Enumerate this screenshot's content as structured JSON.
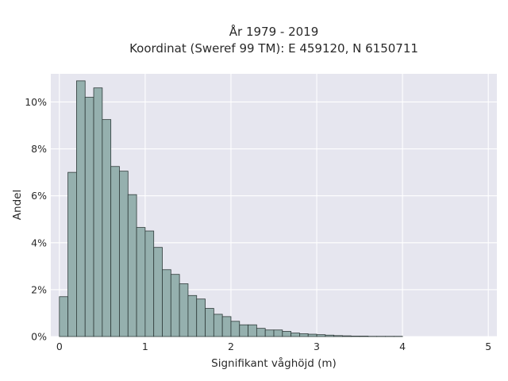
{
  "chart_data": {
    "type": "bar",
    "title_lines": [
      "År 1979 - 2019",
      "Koordinat (Sweref 99 TM): E 459120, N 6150711"
    ],
    "xlabel": "Signifikant våghöjd (m)",
    "ylabel": "Andel",
    "xlim": [
      -0.1,
      5.1
    ],
    "ylim": [
      0,
      11.2
    ],
    "x_ticks": [
      0,
      1,
      2,
      3,
      4,
      5
    ],
    "x_tick_labels": [
      "0",
      "1",
      "2",
      "3",
      "4",
      "5"
    ],
    "y_ticks": [
      0,
      2,
      4,
      6,
      8,
      10
    ],
    "y_tick_labels": [
      "0%",
      "2%",
      "4%",
      "6%",
      "8%",
      "10%"
    ],
    "y_unit": "%",
    "grid": true,
    "bin_width": 0.1,
    "bin_starts": [
      0,
      0.1,
      0.2,
      0.3,
      0.4,
      0.5,
      0.6,
      0.7,
      0.8,
      0.9,
      1.0,
      1.1,
      1.2,
      1.3,
      1.4,
      1.5,
      1.6,
      1.7,
      1.8,
      1.9,
      2.0,
      2.1,
      2.2,
      2.3,
      2.4,
      2.5,
      2.6,
      2.7,
      2.8,
      2.9,
      3.0,
      3.1,
      3.2,
      3.3,
      3.4,
      3.5,
      3.6,
      3.7,
      3.8,
      3.9
    ],
    "values": [
      1.7,
      7.0,
      10.9,
      10.2,
      10.6,
      9.25,
      7.25,
      7.05,
      6.05,
      4.65,
      4.5,
      3.8,
      2.85,
      2.65,
      2.25,
      1.75,
      1.6,
      1.2,
      0.95,
      0.85,
      0.65,
      0.5,
      0.5,
      0.35,
      0.28,
      0.28,
      0.22,
      0.15,
      0.12,
      0.1,
      0.08,
      0.06,
      0.04,
      0.03,
      0.02,
      0.02,
      0.01,
      0.01,
      0.01,
      0.01
    ],
    "colors": {
      "bar_fill": "#95b0ae",
      "bar_edge": "#2f3b3a",
      "plot_background": "#e6e6ef",
      "grid": "#ffffff"
    }
  }
}
